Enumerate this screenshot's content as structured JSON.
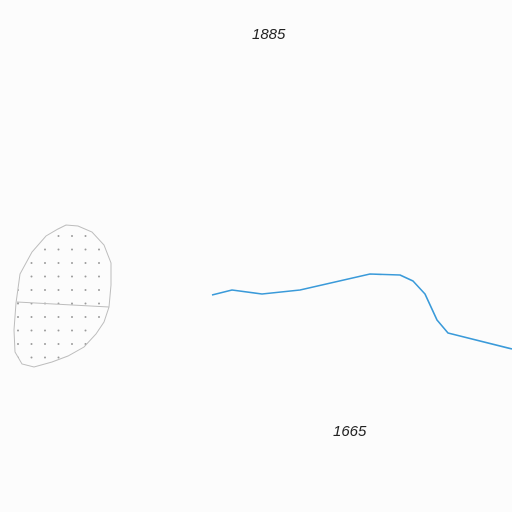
{
  "map": {
    "elevation_labels": {
      "north": "1885",
      "south": "1665"
    },
    "colors": {
      "background": "#fcfcfc",
      "stream": "#3a9ad9",
      "area_outline": "#bdbdbd",
      "area_dots": "#9a9a9a"
    },
    "features": {
      "stream": "waterway-line",
      "dotted_area": "wetland-area"
    }
  }
}
